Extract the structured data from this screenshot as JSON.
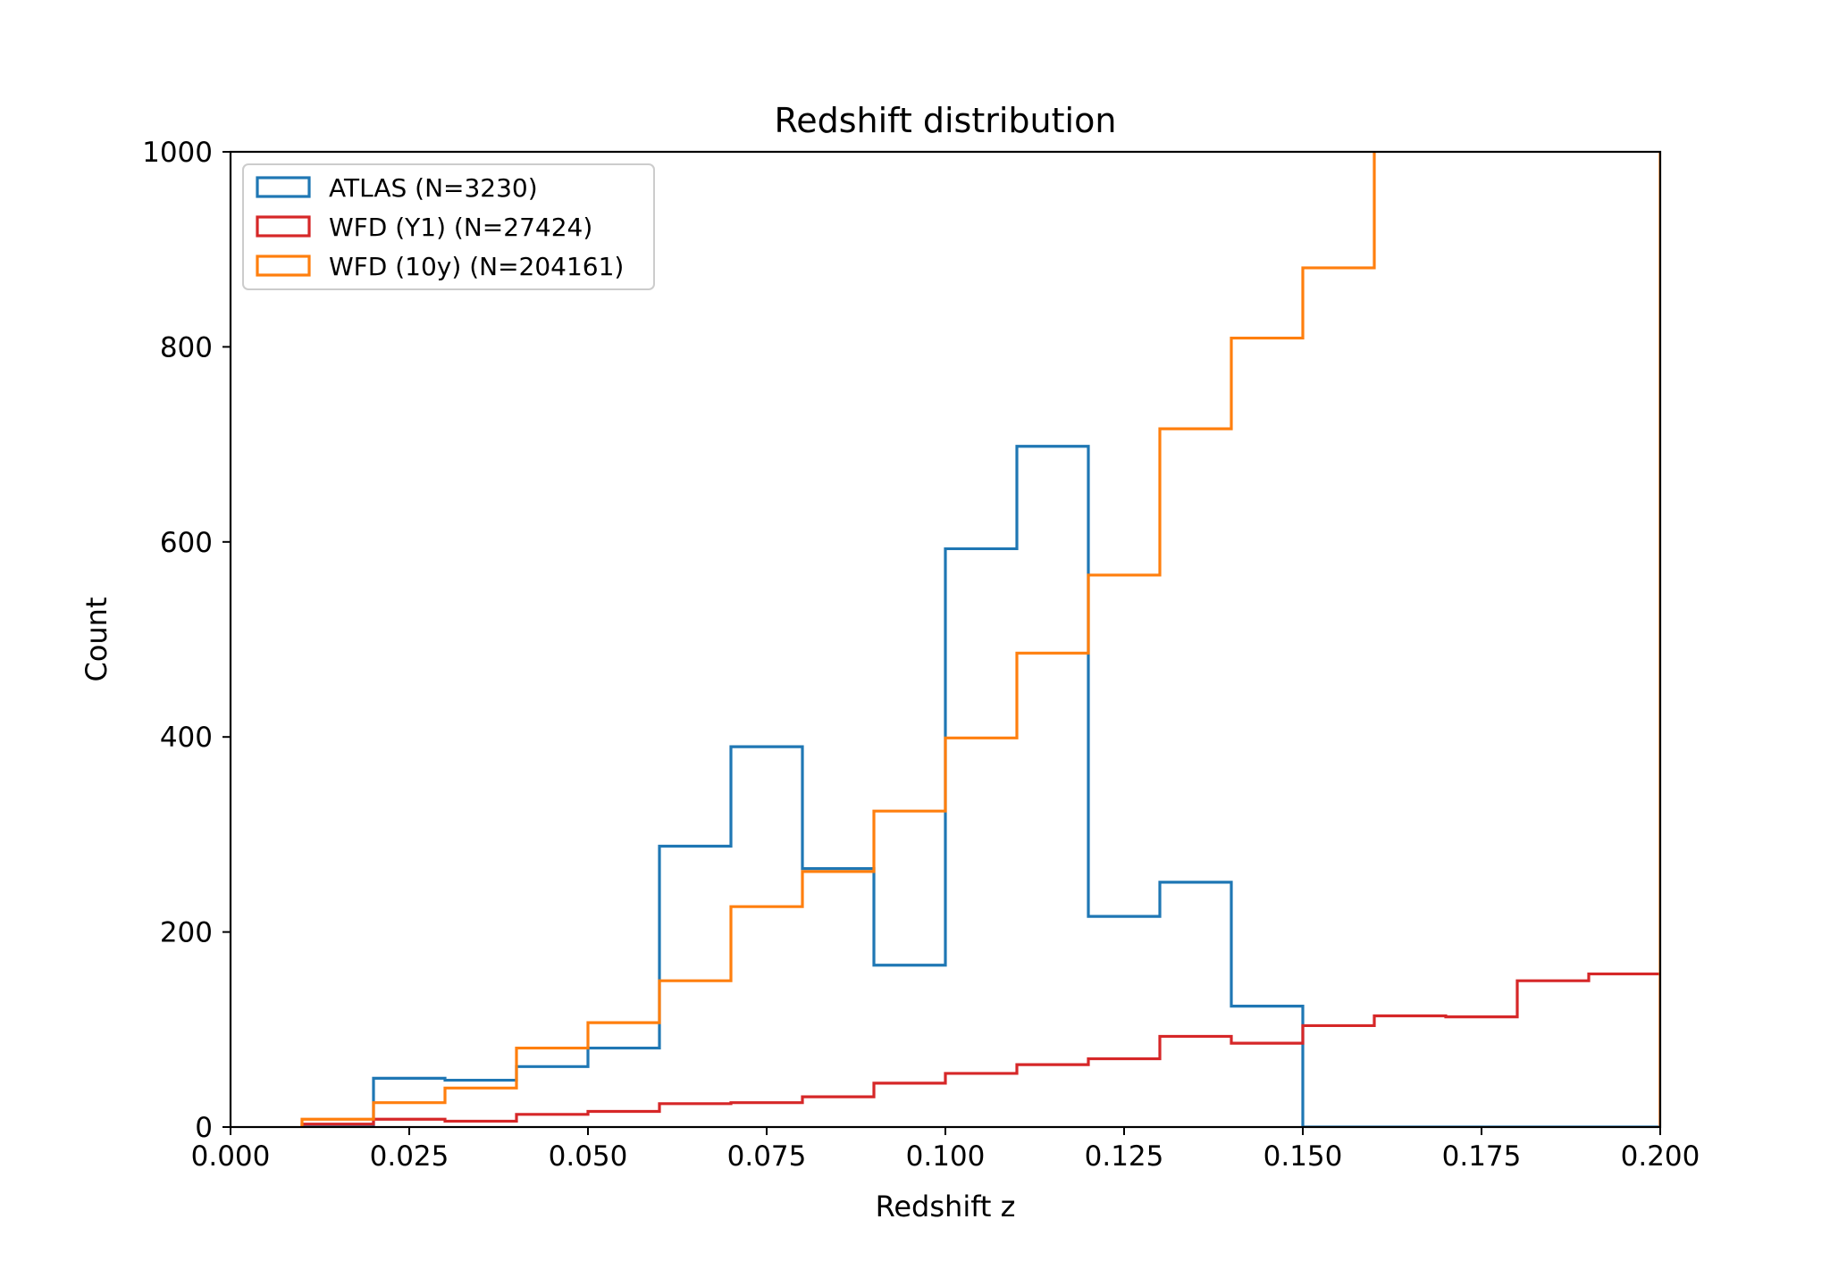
{
  "chart_data": {
    "type": "histogram",
    "title": "Redshift distribution",
    "xlabel": "Redshift z",
    "ylabel": "Count",
    "xlim": [
      0.0,
      0.2
    ],
    "ylim": [
      0,
      1000
    ],
    "grid": false,
    "legend_position": "top-left",
    "x_ticks": [
      0.0,
      0.025,
      0.05,
      0.075,
      0.1,
      0.125,
      0.15,
      0.175,
      0.2
    ],
    "x_tick_labels": [
      "0.000",
      "0.025",
      "0.050",
      "0.075",
      "0.100",
      "0.125",
      "0.150",
      "0.175",
      "0.200"
    ],
    "y_ticks": [
      0,
      200,
      400,
      600,
      800,
      1000
    ],
    "y_tick_labels": [
      "0",
      "200",
      "400",
      "600",
      "800",
      "1000"
    ],
    "bin_edges": [
      0.01,
      0.02,
      0.03,
      0.04,
      0.05,
      0.06,
      0.07,
      0.08,
      0.09,
      0.1,
      0.11,
      0.12,
      0.13,
      0.14,
      0.15,
      0.16,
      0.17,
      0.18,
      0.19,
      0.2
    ],
    "series": [
      {
        "name": "ATLAS (N=3230)",
        "color": "#1f77b4",
        "counts": [
          0,
          50,
          48,
          62,
          81,
          288,
          390,
          265,
          166,
          593,
          698,
          216,
          251,
          124,
          0,
          0,
          0,
          0,
          0
        ]
      },
      {
        "name": "WFD (Y1) (N=27424)",
        "color": "#d62728",
        "counts": [
          3,
          8,
          6,
          13,
          16,
          24,
          25,
          31,
          45,
          55,
          64,
          70,
          93,
          86,
          104,
          114,
          113,
          150,
          157
        ]
      },
      {
        "name": "WFD (10y) (N=204161)",
        "color": "#ff7f0e",
        "counts": [
          8,
          25,
          40,
          81,
          107,
          150,
          226,
          262,
          324,
          399,
          486,
          566,
          716,
          809,
          881,
          1100,
          1100,
          1100,
          1100
        ]
      }
    ]
  }
}
